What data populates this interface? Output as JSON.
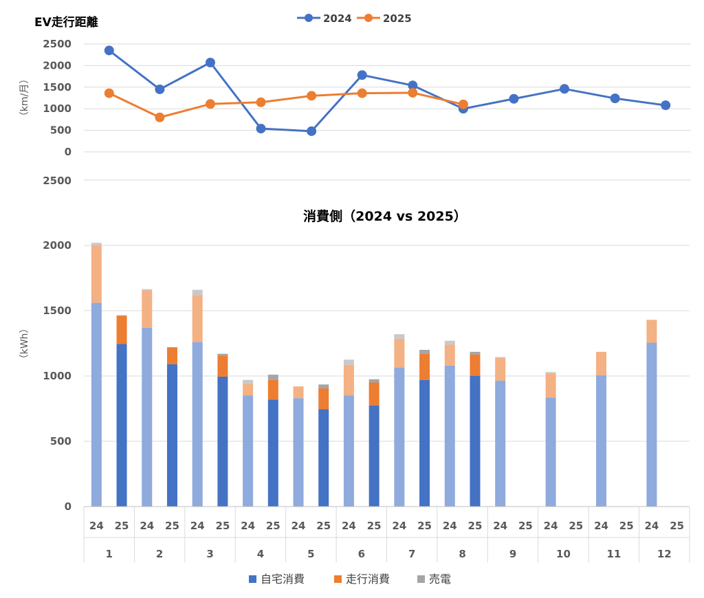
{
  "chart_data": [
    {
      "type": "line",
      "title": "EV走行距離",
      "ylabel": "（km/月）",
      "ylim": [
        0,
        2500
      ],
      "y_ticks": [
        "2500",
        "2000",
        "1500",
        "1000",
        "500",
        "0"
      ],
      "extra_tick": "2500",
      "x": [
        1,
        2,
        3,
        4,
        5,
        6,
        7,
        8,
        9,
        10,
        11,
        12
      ],
      "grid": true,
      "legend_position": "top-center",
      "series": [
        {
          "name": "2024",
          "color": "#4472C4",
          "values": [
            2350,
            1450,
            2070,
            540,
            480,
            1780,
            1540,
            1000,
            1230,
            1460,
            1240,
            1080
          ]
        },
        {
          "name": "2025",
          "color": "#ED7D31",
          "values": [
            1360,
            800,
            1110,
            1150,
            1300,
            1360,
            1370,
            1100,
            null,
            null,
            null,
            null
          ]
        }
      ]
    },
    {
      "type": "bar",
      "stacked": true,
      "title": "消費側（2024 vs 2025）",
      "ylabel": "（kWh）",
      "ylim": [
        0,
        2000
      ],
      "y_ticks": [
        "2000",
        "1500",
        "1000",
        "500",
        "0"
      ],
      "months": [
        "1",
        "2",
        "3",
        "4",
        "5",
        "6",
        "7",
        "8",
        "9",
        "10",
        "11",
        "12"
      ],
      "year_labels": [
        "24",
        "25"
      ],
      "grid": true,
      "legend_position": "bottom",
      "series": [
        {
          "name": "自宅消費",
          "color": "#4472C4",
          "values_2024": [
            1560,
            1370,
            1260,
            850,
            830,
            850,
            1065,
            1080,
            965,
            835,
            1005,
            1255
          ],
          "values_2025": [
            1245,
            1090,
            995,
            820,
            745,
            775,
            970,
            1000,
            null,
            null,
            null,
            null
          ]
        },
        {
          "name": "走行消費",
          "color": "#ED7D31",
          "values_2024": [
            440,
            285,
            360,
            90,
            90,
            235,
            220,
            160,
            175,
            185,
            180,
            175
          ],
          "values_2025": [
            215,
            130,
            160,
            150,
            160,
            175,
            200,
            165,
            null,
            null,
            null,
            null
          ]
        },
        {
          "name": "売電",
          "color": "#A5A5A5",
          "values_2024": [
            20,
            10,
            40,
            30,
            0,
            40,
            35,
            30,
            5,
            10,
            0,
            0
          ],
          "values_2025": [
            5,
            0,
            15,
            40,
            30,
            25,
            30,
            20,
            null,
            null,
            null,
            null
          ]
        }
      ]
    }
  ]
}
